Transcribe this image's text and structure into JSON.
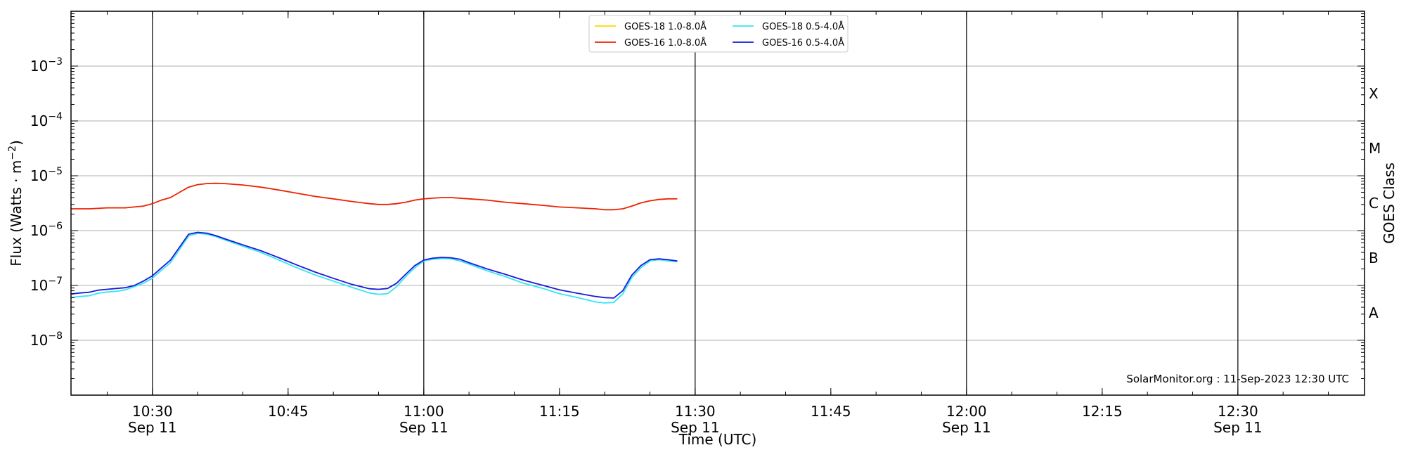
{
  "chart_data": {
    "type": "line",
    "title": "",
    "xlabel": "Time (UTC)",
    "ylabel": "Flux (Watts · m",
    "ylabel_sup": "−2",
    "ylabel_close": ")",
    "right_label": "GOES Class",
    "y_scale": "log",
    "ylim": [
      1e-09,
      0.01
    ],
    "xlim": [
      "10:21",
      "12:44"
    ],
    "y_ticks": [
      {
        "value": 1e-08,
        "base": "10",
        "exp": "−8"
      },
      {
        "value": 1e-07,
        "base": "10",
        "exp": "−7"
      },
      {
        "value": 1e-06,
        "base": "10",
        "exp": "−6"
      },
      {
        "value": 1e-05,
        "base": "10",
        "exp": "−5"
      },
      {
        "value": 0.0001,
        "base": "10",
        "exp": "−4"
      },
      {
        "value": 0.001,
        "base": "10",
        "exp": "−3"
      }
    ],
    "x_ticks": [
      {
        "time": "10:30",
        "label": "10:30",
        "sub": "Sep 11",
        "major": true
      },
      {
        "time": "10:45",
        "label": "10:45",
        "sub": "",
        "major": false
      },
      {
        "time": "11:00",
        "label": "11:00",
        "sub": "Sep 11",
        "major": true
      },
      {
        "time": "11:15",
        "label": "11:15",
        "sub": "",
        "major": false
      },
      {
        "time": "11:30",
        "label": "11:30",
        "sub": "Sep 11",
        "major": true
      },
      {
        "time": "11:45",
        "label": "11:45",
        "sub": "",
        "major": false
      },
      {
        "time": "12:00",
        "label": "12:00",
        "sub": "Sep 11",
        "major": true
      },
      {
        "time": "12:15",
        "label": "12:15",
        "sub": "",
        "major": false
      },
      {
        "time": "12:30",
        "label": "12:30",
        "sub": "Sep 11",
        "major": true
      }
    ],
    "goes_classes": [
      {
        "label": "A",
        "lower": 1e-08
      },
      {
        "label": "B",
        "lower": 1e-07
      },
      {
        "label": "C",
        "lower": 1e-06
      },
      {
        "label": "M",
        "lower": 1e-05
      },
      {
        "label": "X",
        "lower": 0.0001
      }
    ],
    "grid": "horizontal at decades; vertical lines at half-hour marks",
    "legend_position": "top-center",
    "watermark": "SolarMonitor.org : 11-Sep-2023 12:30 UTC",
    "series": [
      {
        "name": "GOES-18 1.0-8.0Å",
        "color": "#ffd700",
        "x": [],
        "y": []
      },
      {
        "name": "GOES-16 1.0-8.0Å",
        "color": "#ee2200",
        "x": [
          "10:21",
          "10:23",
          "10:25",
          "10:27",
          "10:29",
          "10:30",
          "10:31",
          "10:32",
          "10:33",
          "10:34",
          "10:35",
          "10:36",
          "10:37",
          "10:38",
          "10:40",
          "10:42",
          "10:44",
          "10:46",
          "10:48",
          "10:50",
          "10:52",
          "10:54",
          "10:55",
          "10:56",
          "10:57",
          "10:58",
          "10:59",
          "11:00",
          "11:01",
          "11:02",
          "11:03",
          "11:05",
          "11:07",
          "11:09",
          "11:11",
          "11:13",
          "11:15",
          "11:17",
          "11:19",
          "11:20",
          "11:21",
          "11:22",
          "11:23",
          "11:24",
          "11:25",
          "11:26",
          "11:27",
          "11:28"
        ],
        "y": [
          2.5e-06,
          2.5e-06,
          2.6e-06,
          2.6e-06,
          2.8e-06,
          3.1e-06,
          3.6e-06,
          4e-06,
          5e-06,
          6.2e-06,
          6.9e-06,
          7.2e-06,
          7.3e-06,
          7.2e-06,
          6.8e-06,
          6.2e-06,
          5.5e-06,
          4.8e-06,
          4.2e-06,
          3.8e-06,
          3.4e-06,
          3.1e-06,
          3e-06,
          3e-06,
          3.1e-06,
          3.3e-06,
          3.6e-06,
          3.8e-06,
          3.9e-06,
          4e-06,
          4e-06,
          3.8e-06,
          3.6e-06,
          3.3e-06,
          3.1e-06,
          2.9e-06,
          2.7e-06,
          2.6e-06,
          2.5e-06,
          2.4e-06,
          2.4e-06,
          2.5e-06,
          2.8e-06,
          3.2e-06,
          3.5e-06,
          3.7e-06,
          3.8e-06,
          3.8e-06
        ]
      },
      {
        "name": "GOES-18 0.5-4.0Å",
        "color": "#33e6f0",
        "x": [
          "10:21",
          "10:22",
          "10:23",
          "10:24",
          "10:25",
          "10:26",
          "10:27",
          "10:28",
          "10:29",
          "10:30",
          "10:31",
          "10:32",
          "10:33",
          "10:34",
          "10:35",
          "10:36",
          "10:37",
          "10:38",
          "10:40",
          "10:42",
          "10:44",
          "10:46",
          "10:48",
          "10:50",
          "10:52",
          "10:54",
          "10:55",
          "10:56",
          "10:57",
          "10:58",
          "10:59",
          "11:00",
          "11:01",
          "11:02",
          "11:03",
          "11:04",
          "11:05",
          "11:07",
          "11:09",
          "11:11",
          "11:13",
          "11:15",
          "11:17",
          "11:19",
          "11:20",
          "11:21",
          "11:22",
          "11:23",
          "11:24",
          "11:25",
          "11:26",
          "11:27",
          "11:28"
        ],
        "y": [
          6e-08,
          6.3e-08,
          6.5e-08,
          7.2e-08,
          7.6e-08,
          7.8e-08,
          8.3e-08,
          9.5e-08,
          1.1e-07,
          1.35e-07,
          1.9e-07,
          2.6e-07,
          4.5e-07,
          8e-07,
          8.9e-07,
          8.6e-07,
          7.8e-07,
          6.8e-07,
          5.2e-07,
          4e-07,
          2.9e-07,
          2.1e-07,
          1.55e-07,
          1.2e-07,
          9.3e-08,
          7.3e-08,
          6.9e-08,
          7.1e-08,
          9.5e-08,
          1.45e-07,
          2.1e-07,
          2.8e-07,
          3e-07,
          3.1e-07,
          3.05e-07,
          2.8e-07,
          2.45e-07,
          1.85e-07,
          1.45e-07,
          1.1e-07,
          9e-08,
          7.1e-08,
          6e-08,
          5e-08,
          4.8e-08,
          4.9e-08,
          7e-08,
          1.4e-07,
          2.1e-07,
          2.8e-07,
          2.95e-07,
          2.8e-07,
          2.7e-07
        ]
      },
      {
        "name": "GOES-16 0.5-4.0Å",
        "color": "#1a1adc",
        "x": [
          "10:21",
          "10:22",
          "10:23",
          "10:24",
          "10:25",
          "10:26",
          "10:27",
          "10:28",
          "10:29",
          "10:30",
          "10:31",
          "10:32",
          "10:33",
          "10:34",
          "10:35",
          "10:36",
          "10:37",
          "10:38",
          "10:40",
          "10:42",
          "10:44",
          "10:46",
          "10:48",
          "10:50",
          "10:52",
          "10:54",
          "10:55",
          "10:56",
          "10:57",
          "10:58",
          "10:59",
          "11:00",
          "11:01",
          "11:02",
          "11:03",
          "11:04",
          "11:05",
          "11:07",
          "11:09",
          "11:11",
          "11:13",
          "11:15",
          "11:17",
          "11:19",
          "11:20",
          "11:21",
          "11:22",
          "11:23",
          "11:24",
          "11:25",
          "11:26",
          "11:27",
          "11:28"
        ],
        "y": [
          7e-08,
          7.3e-08,
          7.5e-08,
          8.2e-08,
          8.5e-08,
          8.8e-08,
          9.1e-08,
          1e-07,
          1.2e-07,
          1.5e-07,
          2.1e-07,
          2.9e-07,
          5e-07,
          8.6e-07,
          9.3e-07,
          9e-07,
          8.1e-07,
          7.1e-07,
          5.5e-07,
          4.3e-07,
          3.2e-07,
          2.35e-07,
          1.75e-07,
          1.35e-07,
          1.05e-07,
          8.7e-08,
          8.5e-08,
          8.8e-08,
          1.1e-07,
          1.6e-07,
          2.3e-07,
          2.9e-07,
          3.15e-07,
          3.25e-07,
          3.2e-07,
          3e-07,
          2.6e-07,
          2e-07,
          1.6e-07,
          1.25e-07,
          1.02e-07,
          8.3e-08,
          7.2e-08,
          6.3e-08,
          6e-08,
          5.9e-08,
          8e-08,
          1.55e-07,
          2.3e-07,
          2.95e-07,
          3.05e-07,
          2.95e-07,
          2.8e-07
        ]
      }
    ]
  }
}
